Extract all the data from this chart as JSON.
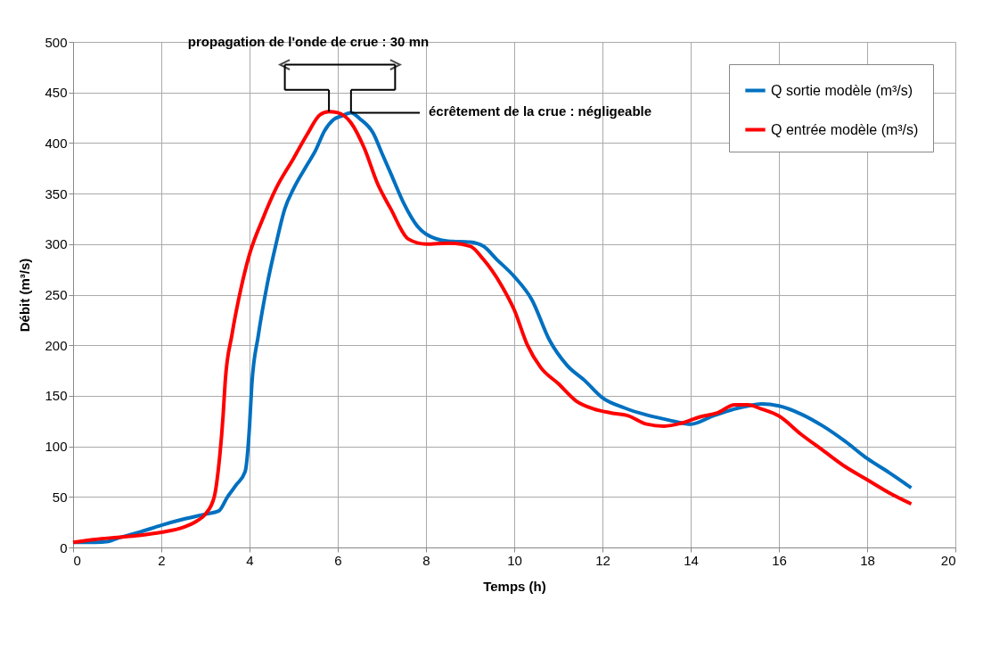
{
  "chart_data": {
    "type": "line",
    "xlabel": "Temps (h)",
    "ylabel": "Débit (m³/s)",
    "xlim": [
      0,
      20
    ],
    "xticks": [
      0,
      2,
      4,
      6,
      8,
      10,
      12,
      14,
      16,
      18,
      20
    ],
    "ylim": [
      0,
      500
    ],
    "yticks": [
      0,
      50,
      100,
      150,
      200,
      250,
      300,
      350,
      400,
      450,
      500
    ],
    "grid": true,
    "legend": "top right",
    "marker": "none",
    "line_style": "solid",
    "annotations": [
      "propagation de l'onde de crue : 30 mn",
      {
        "text": "écrêtement de la crue : négligeable",
        "x": 6.3,
        "y": 430
      }
    ],
    "series": [
      {
        "name": "Q sortie modèle (m³/s)",
        "color": "#0070c0",
        "x": [
          0,
          0.5,
          0.8,
          1,
          1.5,
          2,
          2.5,
          3,
          3.3,
          3.5,
          3.7,
          3.9,
          4.0,
          4.05,
          4.2,
          4.4,
          4.6,
          4.8,
          5.0,
          5.3,
          5.5,
          5.7,
          5.9,
          6.1,
          6.3,
          6.5,
          6.8,
          7.0,
          7.2,
          7.5,
          7.8,
          8.0,
          8.5,
          9.0,
          9.3,
          9.6,
          10.0,
          10.4,
          10.8,
          11.2,
          11.6,
          12,
          12.5,
          13,
          13.5,
          14,
          14.5,
          15,
          15.3,
          15.6,
          16,
          16.5,
          17,
          17.5,
          18,
          18.5,
          19
        ],
        "values": [
          5,
          5,
          6,
          9,
          15,
          22,
          28,
          33,
          36,
          50,
          62,
          75,
          120,
          160,
          210,
          260,
          300,
          335,
          355,
          378,
          393,
          412,
          423,
          427,
          430,
          424,
          410,
          390,
          370,
          340,
          318,
          310,
          303,
          302,
          298,
          285,
          268,
          245,
          205,
          180,
          165,
          148,
          138,
          131,
          126,
          122,
          130,
          137,
          140,
          142,
          140,
          132,
          120,
          105,
          88,
          74,
          59
        ]
      },
      {
        "name": "Q entrée modèle (m³/s)",
        "color": "#ff0000",
        "x": [
          0,
          0.5,
          1,
          1.5,
          2,
          2.5,
          2.8,
          3.0,
          3.2,
          3.3,
          3.4,
          3.45,
          3.6,
          3.8,
          4.0,
          4.3,
          4.6,
          5.0,
          5.3,
          5.6,
          5.8,
          6.0,
          6.3,
          6.6,
          6.9,
          7.2,
          7.6,
          8.0,
          8.5,
          9.0,
          9.3,
          9.7,
          10.0,
          10.3,
          10.6,
          11.0,
          11.4,
          11.8,
          12.2,
          12.6,
          13.0,
          13.4,
          13.8,
          14.2,
          14.6,
          15.0,
          15.3,
          15.6,
          16,
          16.5,
          17,
          17.5,
          18,
          18.5,
          19
        ],
        "values": [
          5,
          8,
          10,
          12,
          15,
          20,
          26,
          33,
          50,
          80,
          130,
          165,
          210,
          255,
          290,
          325,
          355,
          385,
          408,
          428,
          431,
          430,
          420,
          395,
          360,
          335,
          305,
          300,
          301,
          298,
          285,
          260,
          235,
          200,
          178,
          162,
          145,
          137,
          133,
          130,
          122,
          120,
          123,
          129,
          133,
          141,
          141,
          137,
          130,
          112,
          96,
          80,
          67,
          54,
          43
        ]
      }
    ]
  }
}
